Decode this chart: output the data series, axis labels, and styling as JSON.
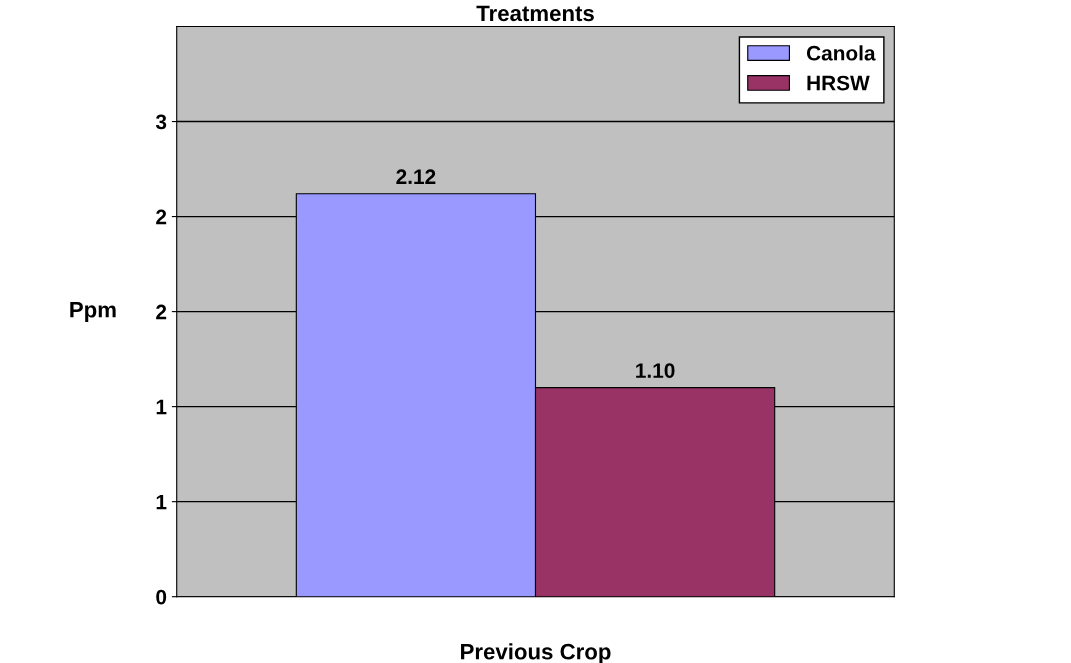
{
  "chart_data": {
    "type": "bar",
    "title": "Treatments",
    "xlabel": "Previous Crop",
    "ylabel": "Ppm",
    "categories": [
      null
    ],
    "series": [
      {
        "name": "Canola",
        "color": "#9999ff",
        "values": [
          2.12
        ],
        "value_labels": [
          "2.12"
        ]
      },
      {
        "name": "HRSW",
        "color": "#993366",
        "values": [
          1.1
        ],
        "value_labels": [
          "1.10"
        ]
      }
    ],
    "ylim": [
      0,
      3
    ],
    "yticks": [
      0,
      {
        "value": 0.5,
        "label": "1"
      },
      {
        "value": 1,
        "label": "1"
      },
      {
        "value": 1.5,
        "label": "2"
      },
      {
        "value": 2,
        "label": "2"
      },
      {
        "value": 2.5,
        "label": "3"
      }
    ],
    "grid": "y",
    "legend": "top right"
  }
}
